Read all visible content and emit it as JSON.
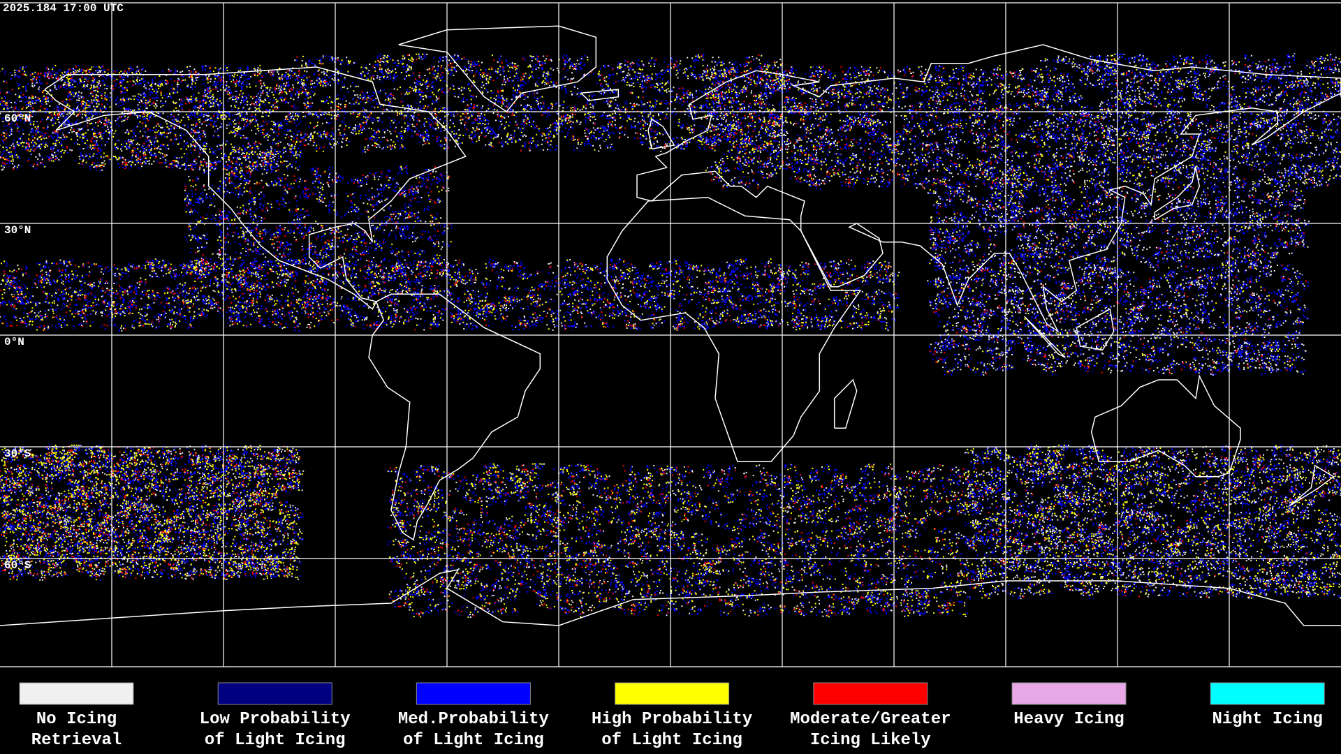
{
  "timestamp": "2025.184 17:00 UTC",
  "map": {
    "lat_labels": [
      "60°N",
      "30°N",
      "0°N",
      "30°S",
      "60°S"
    ]
  },
  "legend": [
    {
      "lines": [
        "No Icing",
        "Retrieval"
      ],
      "color": "#f0f0f0"
    },
    {
      "lines": [
        "Low Probability",
        "of Light Icing"
      ],
      "color": "#000080"
    },
    {
      "lines": [
        "Med.Probability",
        "of Light Icing"
      ],
      "color": "#0000ff"
    },
    {
      "lines": [
        "High Probability",
        "of Light Icing"
      ],
      "color": "#ffff00"
    },
    {
      "lines": [
        "Moderate/Greater",
        "Icing Likely"
      ],
      "color": "#ff0000"
    },
    {
      "lines": [
        "Heavy Icing"
      ],
      "color": "#e8a8e8"
    },
    {
      "lines": [
        "Night Icing"
      ],
      "color": "#00ffff"
    }
  ]
}
